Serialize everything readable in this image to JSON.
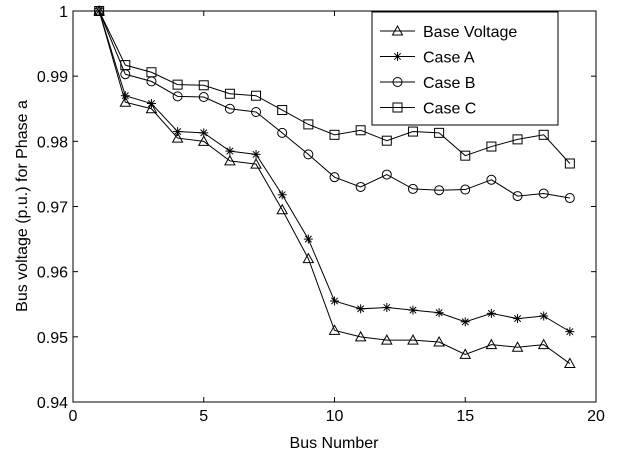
{
  "chart_data": {
    "type": "line",
    "title": "",
    "xlabel": "Bus Number",
    "ylabel": "Bus voltage (p.u.) for Phase a",
    "xlim": [
      0,
      20
    ],
    "ylim": [
      0.94,
      1
    ],
    "xticks": [
      0,
      5,
      10,
      15,
      20
    ],
    "yticks": [
      0.94,
      0.95,
      0.96,
      0.97,
      0.98,
      0.99,
      1
    ],
    "ytick_labels": [
      "0.94",
      "0.95",
      "0.96",
      "0.97",
      "0.98",
      "0.99",
      "1"
    ],
    "grid": false,
    "legend_position": "top-right",
    "x": [
      1,
      2,
      3,
      4,
      5,
      6,
      7,
      8,
      9,
      10,
      11,
      12,
      13,
      14,
      15,
      16,
      17,
      18,
      19
    ],
    "series": [
      {
        "name": "Base Voltage",
        "marker": "triangle",
        "values": [
          1.0,
          0.986,
          0.985,
          0.9805,
          0.98,
          0.977,
          0.9765,
          0.9695,
          0.962,
          0.951,
          0.95,
          0.9495,
          0.9495,
          0.9492,
          0.9473,
          0.9488,
          0.9484,
          0.9488,
          0.9459
        ]
      },
      {
        "name": "Case A",
        "marker": "star",
        "values": [
          1.0,
          0.987,
          0.9858,
          0.9815,
          0.9813,
          0.9785,
          0.978,
          0.9718,
          0.965,
          0.9555,
          0.9543,
          0.9545,
          0.9541,
          0.9537,
          0.9523,
          0.9536,
          0.9528,
          0.9532,
          0.9508
        ]
      },
      {
        "name": "Case B",
        "marker": "circle",
        "values": [
          1.0,
          0.9903,
          0.9892,
          0.9869,
          0.9868,
          0.985,
          0.9845,
          0.9813,
          0.978,
          0.9745,
          0.973,
          0.9749,
          0.9727,
          0.9725,
          0.9726,
          0.9741,
          0.9716,
          0.972,
          0.9713
        ]
      },
      {
        "name": "Case C",
        "marker": "square",
        "values": [
          1.0,
          0.9917,
          0.9906,
          0.9887,
          0.9886,
          0.9873,
          0.987,
          0.9848,
          0.9826,
          0.981,
          0.9817,
          0.9801,
          0.9815,
          0.9813,
          0.9778,
          0.9792,
          0.9803,
          0.981,
          0.9766
        ]
      }
    ]
  }
}
